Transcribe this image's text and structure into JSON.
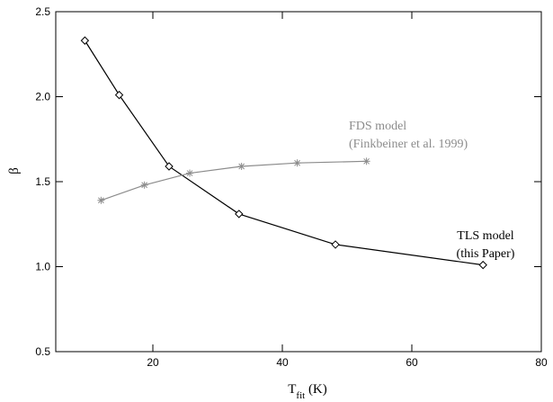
{
  "chart_data": {
    "type": "line",
    "xlim": [
      5,
      80
    ],
    "ylim": [
      0.5,
      2.5
    ],
    "x_ticks": [
      20,
      40,
      60,
      80
    ],
    "y_ticks": [
      0.5,
      1.0,
      1.5,
      2.0,
      2.5
    ],
    "x_tick_labels": [
      "20",
      "40",
      "60",
      "80"
    ],
    "y_tick_labels": [
      "0.5",
      "1.0",
      "1.5",
      "2.0",
      "2.5"
    ],
    "xlabel_main": "T",
    "xlabel_sub": "fit",
    "xlabel_unit": " (K)",
    "ylabel": "β",
    "grid": false,
    "series": [
      {
        "name": "TLS model (this Paper)",
        "label_lines": [
          "TLS model",
          "(this Paper)"
        ],
        "color": "#000000",
        "marker": "diamond",
        "x": [
          9.5,
          14.8,
          22.5,
          33.3,
          48.2,
          71.0
        ],
        "y": [
          2.33,
          2.01,
          1.59,
          1.31,
          1.13,
          1.01
        ]
      },
      {
        "name": "FDS model (Finkbeiner et al. 1999)",
        "label_lines": [
          "FDS model",
          "(Finkbeiner et al. 1999)"
        ],
        "color": "#8c8c8c",
        "marker": "asterisk",
        "x": [
          12.0,
          18.7,
          25.7,
          33.7,
          42.3,
          53.0
        ],
        "y": [
          1.39,
          1.48,
          1.55,
          1.59,
          1.61,
          1.62
        ]
      }
    ]
  }
}
